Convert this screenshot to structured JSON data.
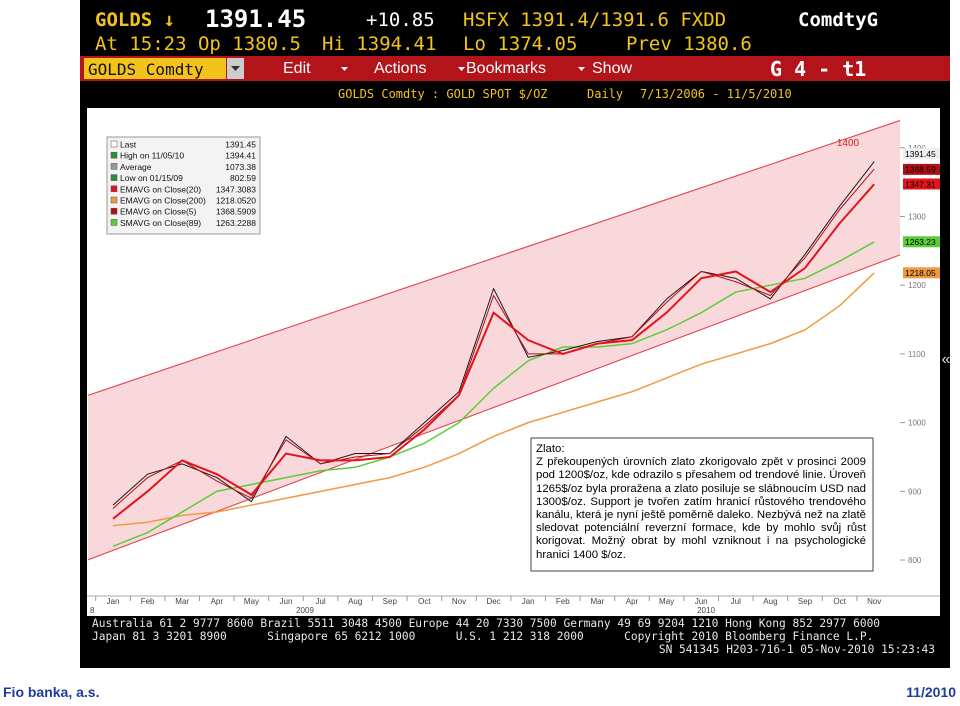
{
  "terminal": {
    "row1": {
      "ticker": "GOLDS ↓",
      "price": "1391.45",
      "change": "+10.85",
      "source": "HSFX 1391.4/1391.6 FXDD",
      "market": "ComdtyG"
    },
    "row2": {
      "time": "At 15:23 Op 1380.5",
      "high": "Hi 1394.41",
      "low": "Lo 1374.05",
      "prev": "Prev 1380.6"
    },
    "menu": {
      "security": "GOLDS Comdty",
      "items": [
        "Edit",
        "Actions",
        "Bookmarks",
        "Show"
      ],
      "page": "G 4 - t1"
    },
    "row4": {
      "security": "GOLDS Comdty   :  GOLD SPOT $/OZ",
      "period": "Daily",
      "range": "7/13/2006 - 11/5/2010"
    },
    "side_button": "«",
    "footer": [
      "Australia 61 2 9777 8600 Brazil 5511 3048 4500 Europe 44 20 7330 7500 Germany 49 69 9204 1210 Hong Kong 852 2977 6000",
      "Japan 81 3 3201 8900      Singapore 65 6212 1000      U.S. 1 212 318 2000      Copyright 2010 Bloomberg Finance L.P.",
      "SN 541345 H203-716-1 05-Nov-2010 15:23:43"
    ]
  },
  "chart_data": {
    "type": "line",
    "x": [
      "2009-01",
      "2009-02",
      "2009-03",
      "2009-04",
      "2009-05",
      "2009-06",
      "2009-07",
      "2009-08",
      "2009-09",
      "2009-10",
      "2009-11",
      "2009-12",
      "2010-01",
      "2010-02",
      "2010-03",
      "2010-04",
      "2010-05",
      "2010-06",
      "2010-07",
      "2010-08",
      "2010-09",
      "2010-10",
      "2010-11"
    ],
    "month_labels": [
      "Jan",
      "Feb",
      "Mar",
      "Apr",
      "May",
      "Jun",
      "Jul",
      "Aug",
      "Sep",
      "Oct",
      "Nov",
      "Dec",
      "Jan",
      "Feb",
      "Mar",
      "Apr",
      "May",
      "Jun",
      "Jul",
      "Aug",
      "Sep",
      "Oct",
      "Nov"
    ],
    "year_labels": [
      "8",
      "2009",
      "2010"
    ],
    "ylim": [
      750,
      1425
    ],
    "yticks": [
      800,
      900,
      1000,
      1100,
      1200,
      1300,
      1400
    ],
    "price": {
      "color": "#1a1a1a",
      "tag": 1391.45,
      "values": [
        880,
        925,
        940,
        920,
        885,
        980,
        940,
        955,
        955,
        1000,
        1045,
        1195,
        1095,
        1105,
        1118,
        1125,
        1180,
        1220,
        1210,
        1180,
        1245,
        1315,
        1380
      ]
    },
    "series": [
      {
        "name": "EMAVG on Close(20)",
        "legend_value": "1347.3083",
        "color": "#e3141b",
        "width": 2,
        "tag": 1347.31,
        "values": [
          860,
          900,
          945,
          925,
          895,
          955,
          945,
          945,
          950,
          990,
          1040,
          1160,
          1120,
          1100,
          1115,
          1120,
          1160,
          1210,
          1220,
          1190,
          1225,
          1290,
          1347
        ]
      },
      {
        "name": "EMAVG on Close(200)",
        "legend_value": "1218.0520",
        "color": "#f09a3e",
        "width": 1.5,
        "tag": 1218.05,
        "values": [
          850,
          855,
          865,
          870,
          880,
          890,
          900,
          910,
          920,
          935,
          955,
          980,
          1000,
          1015,
          1030,
          1045,
          1065,
          1085,
          1100,
          1115,
          1135,
          1170,
          1218
        ]
      },
      {
        "name": "EMAVG on Close(5)",
        "legend_value": "1368.5909",
        "color": "#b01018",
        "width": 1,
        "tag": 1368.59,
        "values": [
          875,
          920,
          945,
          915,
          890,
          975,
          940,
          950,
          955,
          995,
          1040,
          1185,
          1100,
          1100,
          1115,
          1125,
          1175,
          1220,
          1205,
          1185,
          1240,
          1310,
          1369
        ]
      },
      {
        "name": "SMAVG on Close(89)",
        "legend_value": "1263.2288",
        "color": "#5ccc3a",
        "width": 1.5,
        "tag": 1263.23,
        "values": [
          820,
          840,
          870,
          900,
          910,
          920,
          930,
          935,
          950,
          970,
          1000,
          1050,
          1090,
          1110,
          1110,
          1115,
          1135,
          1160,
          1190,
          1200,
          1210,
          1235,
          1263
        ]
      }
    ],
    "stats": [
      {
        "label": "Last",
        "value": "1391.45"
      },
      {
        "label": "High on 11/05/10",
        "value": "1394.41"
      },
      {
        "label": "Average",
        "value": "1073.38"
      },
      {
        "label": "Low on 01/15/09",
        "value": "802.59"
      }
    ],
    "channel": {
      "x": [
        "2009-01",
        "2010-11"
      ],
      "upper": [
        1052,
        1427
      ],
      "lower": [
        814,
        1230
      ],
      "color": "#f4b8bd",
      "label": 1400
    },
    "annotation": {
      "title": "Zlato:",
      "text": "Z překoupených úrovních zlato zkorigovalo zpět v prosinci 2009 pod 1200$/oz, kde odrazilo s přesahem od trendové linie. Úroveň 1265$/oz byla proražena a zlato posiluje se slábnoucím USD nad 1300$/oz. Support je tvořen zatím hranicí růstového trendového kanálu, která je nyní ještě poměrně daleko. Nezbývá než na zlatě sledovat potenciální reverzní formace, kde by mohlo svůj růst korigovat. Možný obrat by mohl vzniknout i na psychologické hranici 1400 $/oz."
    }
  },
  "page_footer": {
    "left": "Fio banka, a.s.",
    "right": "11/2010"
  }
}
